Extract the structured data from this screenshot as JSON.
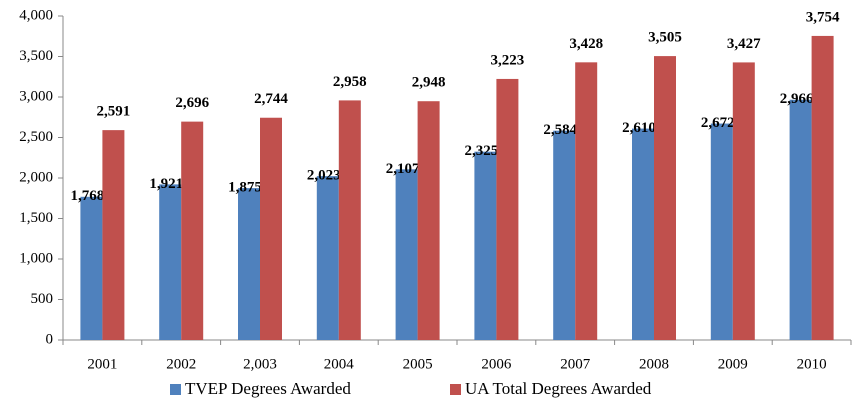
{
  "chart_data": {
    "type": "bar",
    "categories": [
      "2001",
      "2002",
      "2,003",
      "2004",
      "2005",
      "2006",
      "2007",
      "2008",
      "2009",
      "2010"
    ],
    "series": [
      {
        "name": "TVEP Degrees Awarded",
        "color": "#4f81bd",
        "values": [
          1768,
          1921,
          1875,
          2023,
          2107,
          2325,
          2584,
          2610,
          2672,
          2966
        ],
        "value_labels": [
          "1,768",
          "1,921",
          "1,875",
          "2,023",
          "2,107",
          "2,325",
          "2,584",
          "2,610",
          "2,672",
          "2,966"
        ]
      },
      {
        "name": "UA Total Degrees Awarded",
        "color": "#c0504d",
        "values": [
          2591,
          2696,
          2744,
          2958,
          2948,
          3223,
          3428,
          3505,
          3427,
          3754
        ],
        "value_labels": [
          "2,591",
          "2,696",
          "2,744",
          "2,958",
          "2,948",
          "3,223",
          "3,428",
          "3,505",
          "3,427",
          "3,754"
        ]
      }
    ],
    "ylim": [
      0,
      4000
    ],
    "yticks": [
      0,
      500,
      {
        "value": 1000,
        "label": "1,000"
      },
      {
        "value": 1500,
        "label": "1,500"
      },
      {
        "value": 2000,
        "label": "2,000"
      },
      {
        "value": 2500,
        "label": "2,500"
      },
      {
        "value": 3000,
        "label": "3,000"
      },
      {
        "value": 3500,
        "label": "3,500"
      },
      {
        "value": 4000,
        "label": "4,000"
      }
    ],
    "grid": false,
    "legend": "bottom"
  }
}
